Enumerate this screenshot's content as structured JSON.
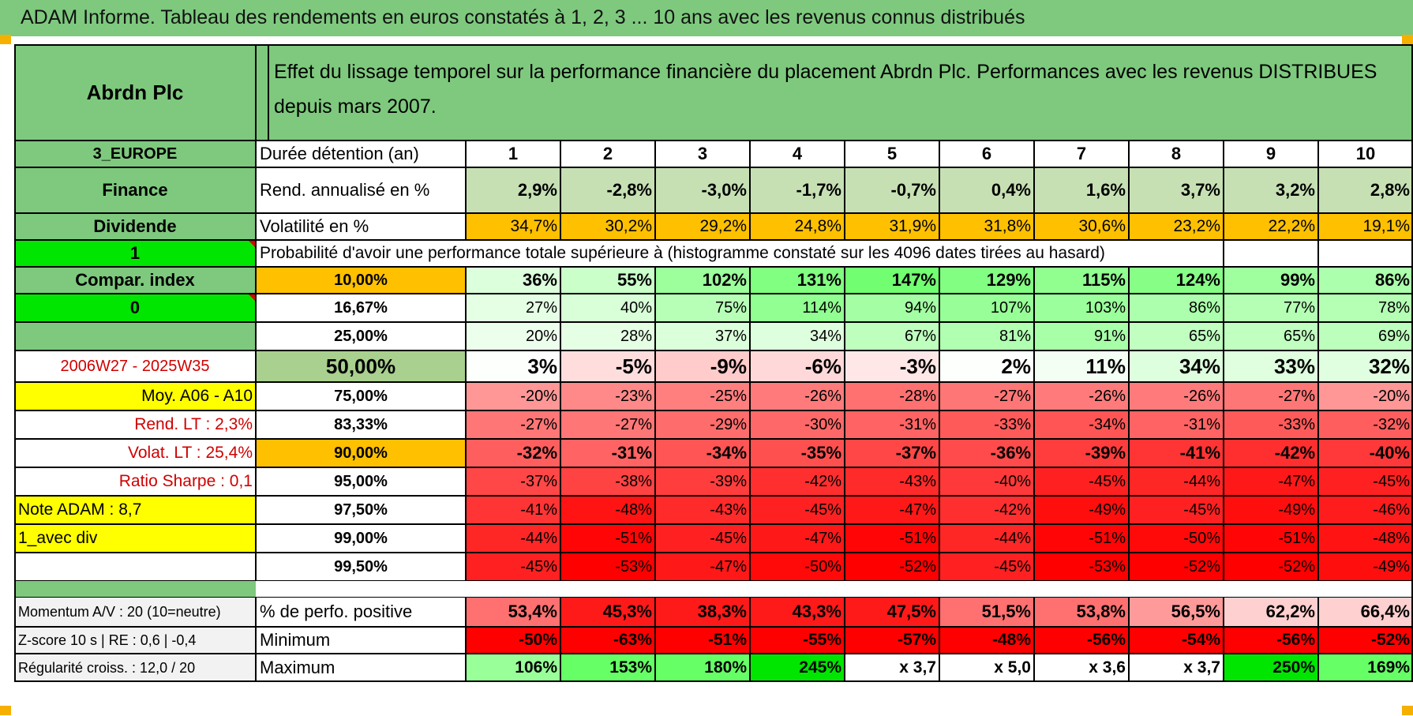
{
  "title": "ADAM Informe. Tableau des rendements en euros constatés à 1, 2, 3 ... 10 ans avec les revenus connus distribués",
  "fund_name": "Abrdn Plc",
  "banner": "Effet du lissage temporel sur la performance financière du placement Abrdn Plc. Performances avec les revenus DISTRIBUES depuis mars 2007.",
  "region": "3_EUROPE",
  "sector": "Finance",
  "income_type": "Dividende",
  "flag_1": "1",
  "compar_index": "Compar. index",
  "flag_0": "0",
  "period": "2006W27 - 2025W35",
  "moy": "Moy. A06 - A10",
  "rend_lt": "Rend. LT :    2,3%",
  "volat_lt": "Volat. LT :    25,4%",
  "sharpe": "Ratio Sharpe :     0,1",
  "note": "Note ADAM : 8,7",
  "avec_div": "1_avec div",
  "holding_label": "Durée détention (an)",
  "years": [
    "1",
    "2",
    "3",
    "4",
    "5",
    "6",
    "7",
    "8",
    "9",
    "10"
  ],
  "rend_label": "Rend. annualisé en %",
  "rend": [
    "2,9%",
    "-2,8%",
    "-3,0%",
    "-1,7%",
    "-0,7%",
    "0,4%",
    "1,6%",
    "3,7%",
    "3,2%",
    "2,8%"
  ],
  "vol_label": "Volatilité en %",
  "vol": [
    "34,7%",
    "30,2%",
    "29,2%",
    "24,8%",
    "31,9%",
    "31,8%",
    "30,6%",
    "23,2%",
    "22,2%",
    "19,1%"
  ],
  "prob_header": "Probabilité d'avoir une performance totale supérieure à (histogramme constaté sur les 4096 dates tirées au hasard)",
  "quantiles": [
    {
      "label": "10,00%",
      "values": [
        "36%",
        "55%",
        "102%",
        "131%",
        "147%",
        "129%",
        "115%",
        "124%",
        "99%",
        "86%"
      ]
    },
    {
      "label": "16,67%",
      "values": [
        "27%",
        "40%",
        "75%",
        "114%",
        "94%",
        "107%",
        "103%",
        "86%",
        "77%",
        "78%"
      ]
    },
    {
      "label": "25,00%",
      "values": [
        "20%",
        "28%",
        "37%",
        "34%",
        "67%",
        "81%",
        "91%",
        "65%",
        "65%",
        "69%"
      ]
    },
    {
      "label": "50,00%",
      "values": [
        "3%",
        "-5%",
        "-9%",
        "-6%",
        "-3%",
        "2%",
        "11%",
        "34%",
        "33%",
        "32%"
      ]
    },
    {
      "label": "75,00%",
      "values": [
        "-20%",
        "-23%",
        "-25%",
        "-26%",
        "-28%",
        "-27%",
        "-26%",
        "-26%",
        "-27%",
        "-20%"
      ]
    },
    {
      "label": "83,33%",
      "values": [
        "-27%",
        "-27%",
        "-29%",
        "-30%",
        "-31%",
        "-33%",
        "-34%",
        "-31%",
        "-33%",
        "-32%"
      ]
    },
    {
      "label": "90,00%",
      "values": [
        "-32%",
        "-31%",
        "-34%",
        "-35%",
        "-37%",
        "-36%",
        "-39%",
        "-41%",
        "-42%",
        "-40%"
      ]
    },
    {
      "label": "95,00%",
      "values": [
        "-37%",
        "-38%",
        "-39%",
        "-42%",
        "-43%",
        "-40%",
        "-45%",
        "-44%",
        "-47%",
        "-45%"
      ]
    },
    {
      "label": "97,50%",
      "values": [
        "-41%",
        "-48%",
        "-43%",
        "-45%",
        "-47%",
        "-42%",
        "-49%",
        "-45%",
        "-49%",
        "-46%"
      ]
    },
    {
      "label": "99,00%",
      "values": [
        "-44%",
        "-51%",
        "-45%",
        "-47%",
        "-51%",
        "-44%",
        "-51%",
        "-50%",
        "-51%",
        "-48%"
      ]
    },
    {
      "label": "99,50%",
      "values": [
        "-45%",
        "-53%",
        "-47%",
        "-50%",
        "-52%",
        "-45%",
        "-53%",
        "-52%",
        "-52%",
        "-49%"
      ]
    }
  ],
  "momentum": "Momentum A/V : 20 (10=neutre)",
  "zscore": "Z-score 10 s | RE : 0,6 | -0,4",
  "regularite": "Régularité croiss. : 12,0 / 20",
  "pos_label": "% de perfo. positive",
  "pos": [
    "53,4%",
    "45,3%",
    "38,3%",
    "43,3%",
    "47,5%",
    "51,5%",
    "53,8%",
    "56,5%",
    "62,2%",
    "66,4%"
  ],
  "min_label": "Minimum",
  "min": [
    "-50%",
    "-63%",
    "-51%",
    "-55%",
    "-57%",
    "-48%",
    "-56%",
    "-54%",
    "-56%",
    "-52%"
  ],
  "max_label": "Maximum",
  "max": [
    "106%",
    "153%",
    "180%",
    "245%",
    "x 3,7",
    "x 5,0",
    "x 3,6",
    "x 3,7",
    "250%",
    "169%"
  ],
  "colors": {
    "header_green": "#7ec97e",
    "bright_green": "#00e600",
    "yellow": "#ffff00",
    "orange": "#ffc000",
    "red_text": "#d00000",
    "label_grey": "#f2f2f2"
  }
}
